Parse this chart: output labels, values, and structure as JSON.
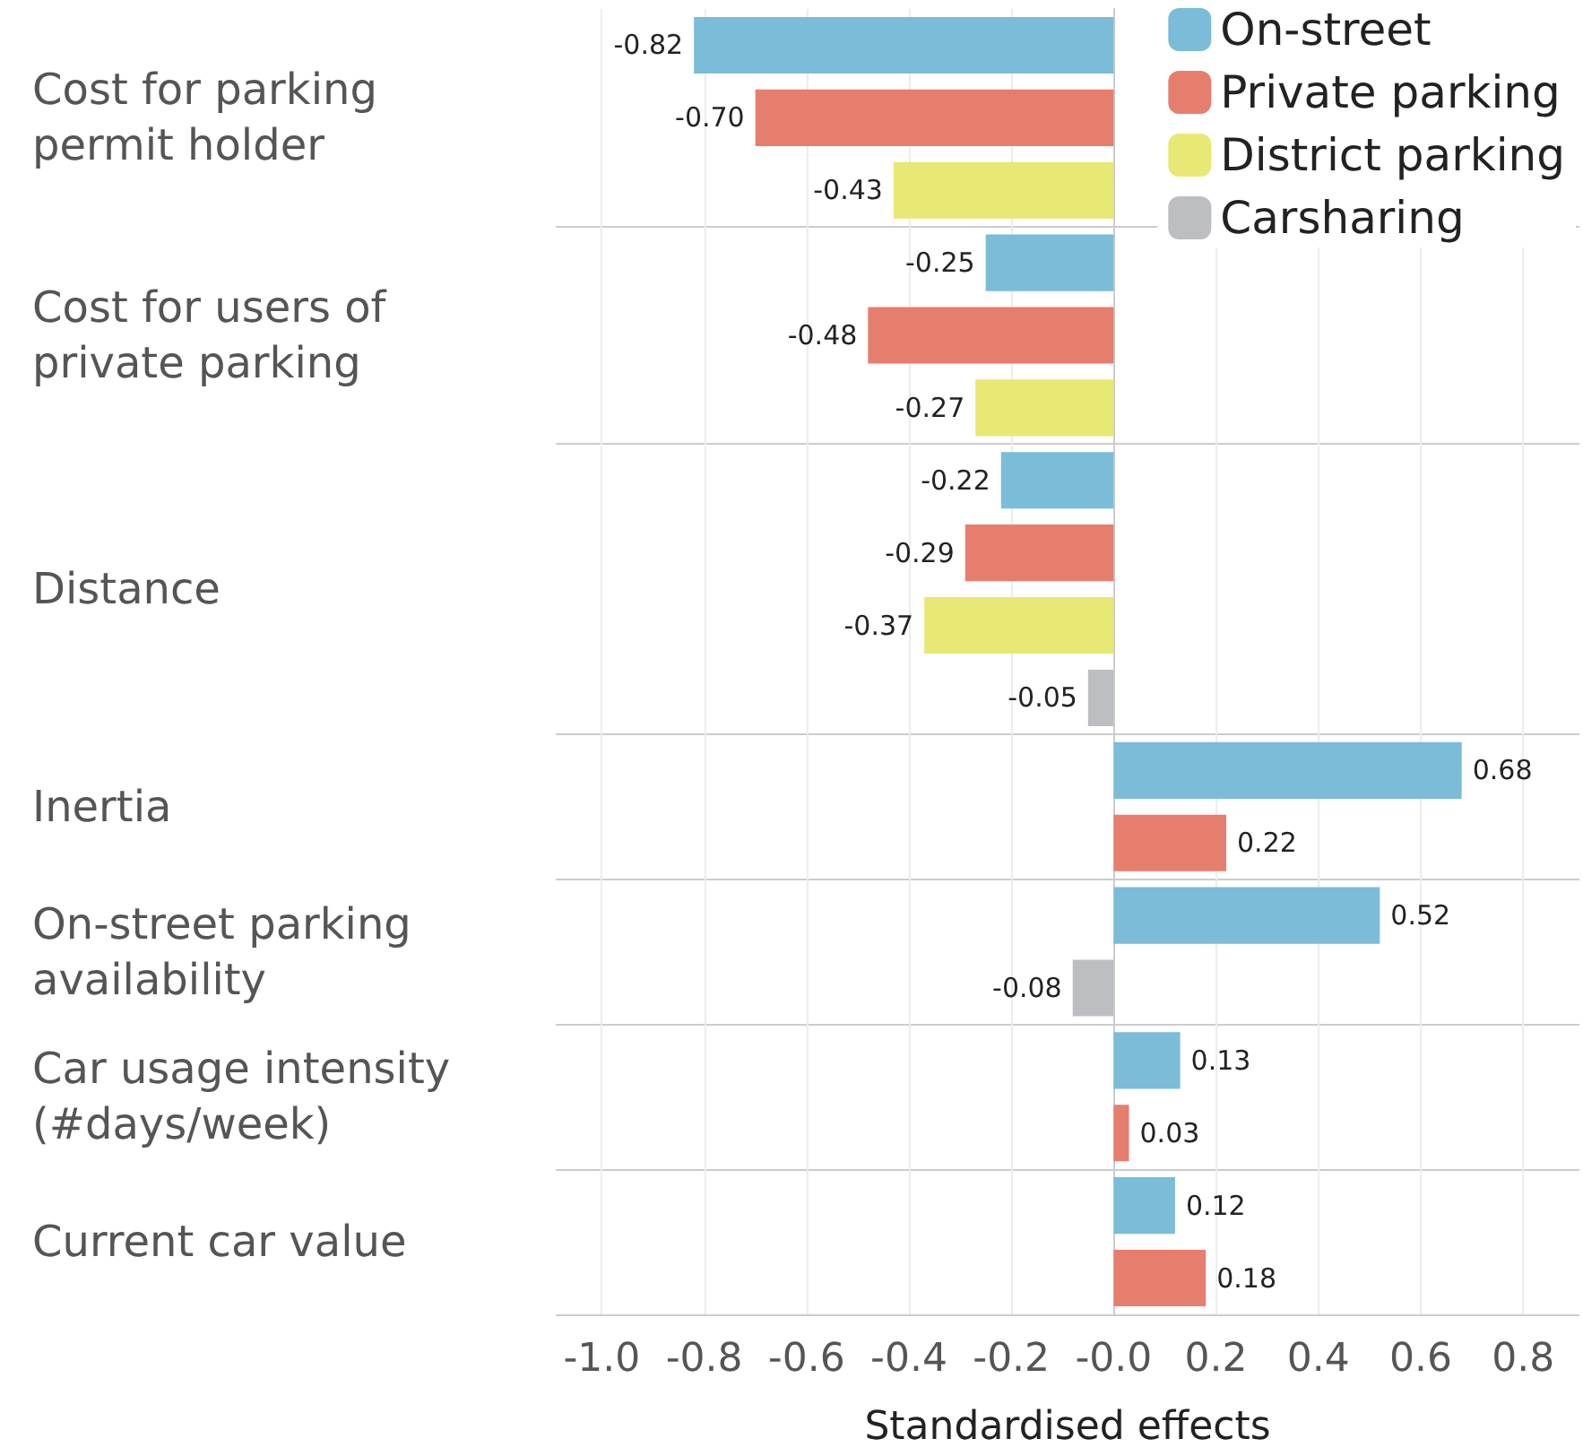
{
  "chart_data": {
    "type": "bar",
    "orientation": "horizontal",
    "xlabel": "Standardised effects",
    "categories": [
      "Cost for parking permit holder",
      "Cost for users of private parking",
      "Distance",
      "Inertia",
      "On-street parking availability",
      "Car usage intensity (#days/week)",
      "Current car value"
    ],
    "series": [
      {
        "name": "On-street",
        "color": "#7bbcd9",
        "values": [
          -0.82,
          -0.25,
          -0.22,
          0.68,
          0.52,
          0.13,
          0.12
        ],
        "value_labels": [
          "-0.82",
          "-0.25",
          "-0.22",
          "0.68",
          "0.52",
          "0.13",
          "0.12"
        ]
      },
      {
        "name": "Private parking",
        "color": "#e67e6e",
        "values": [
          -0.7,
          -0.48,
          -0.29,
          0.22,
          null,
          0.03,
          0.18
        ],
        "value_labels": [
          "-0.70",
          "-0.48",
          "-0.29",
          "0.22",
          null,
          "0.03",
          "0.18"
        ]
      },
      {
        "name": "District parking",
        "color": "#e8e874",
        "values": [
          -0.43,
          -0.27,
          -0.37,
          null,
          null,
          null,
          null
        ],
        "value_labels": [
          "-0.43",
          "-0.27",
          "-0.37",
          null,
          null,
          null,
          null
        ]
      },
      {
        "name": "Carsharing",
        "color": "#bcbec2",
        "values": [
          null,
          null,
          -0.05,
          null,
          -0.08,
          null,
          null
        ],
        "value_labels": [
          null,
          null,
          "-0.05",
          null,
          "-0.08",
          null,
          null
        ]
      }
    ],
    "xlim": [
      -1.09,
      0.91
    ],
    "xticks": [
      {
        "value": -1,
        "label": "-1.0"
      },
      -0.8,
      -0.6,
      -0.4,
      -0.2,
      {
        "value": 0,
        "label": "-0.0"
      },
      0.2,
      0.4,
      0.6,
      0.8
    ],
    "grid": true,
    "legend": "top right"
  }
}
